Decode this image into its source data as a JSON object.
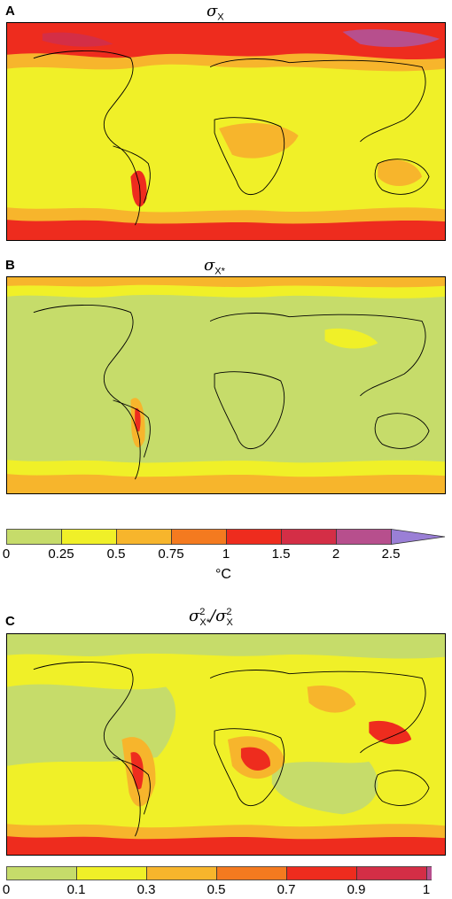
{
  "panels": {
    "a": {
      "letter": "A",
      "title_var": "σ",
      "title_sub": "X"
    },
    "b": {
      "letter": "B",
      "title_var": "σ",
      "title_sub": "X*"
    },
    "c": {
      "letter": "C",
      "title_num_var": "σ",
      "title_num_sub": "X*",
      "title_num_sup": "2",
      "title_den_var": "σ",
      "title_den_sub": "X",
      "title_den_sup": "2"
    }
  },
  "colorbar_top": {
    "ticks": [
      "0",
      "0.25",
      "0.5",
      "0.75",
      "1",
      "1.5",
      "2",
      "2.5"
    ],
    "unit": "°C",
    "colors": [
      "#c6dc6a",
      "#f0f028",
      "#f7b52c",
      "#f47a1f",
      "#ee2c1e",
      "#d42e46",
      "#b74f8d",
      "#9a7fd6"
    ]
  },
  "colorbar_bottom": {
    "ticks": [
      "0",
      "0.1",
      "0.3",
      "0.5",
      "0.7",
      "0.9",
      "1"
    ],
    "colors": [
      "#c6dc6a",
      "#f0f028",
      "#f7b52c",
      "#f47a1f",
      "#ee2c1e",
      "#d42e46",
      "#b74f8d"
    ]
  }
}
